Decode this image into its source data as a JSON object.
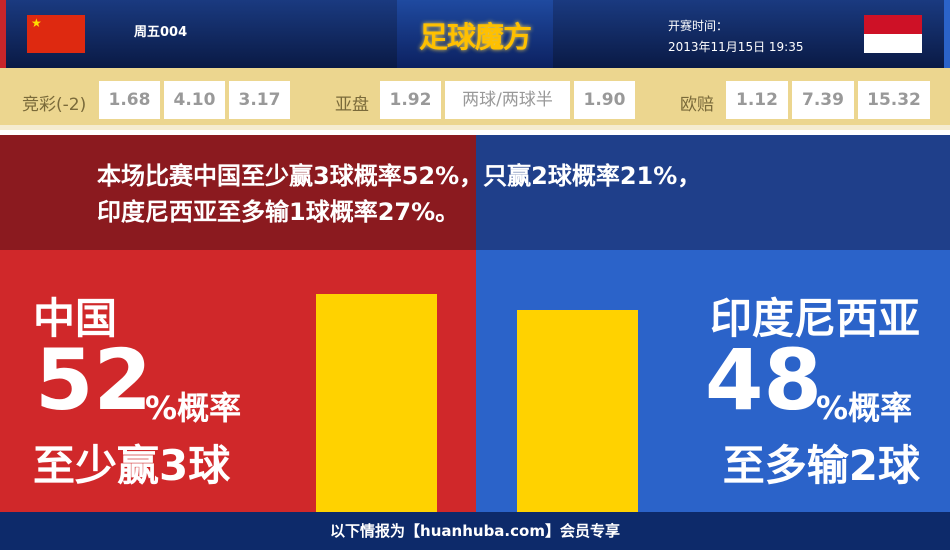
{
  "header": {
    "match_id": "周五004",
    "logo": "足球魔方",
    "time_label": "开赛时间：",
    "time": "2013年11月15日 19:35",
    "home_flag": "china-flag",
    "away_flag": "indonesia-flag"
  },
  "odds": {
    "jingcai_label": "竞彩(-2)",
    "jingcai": [
      "1.68",
      "4.10",
      "3.17"
    ],
    "yapan_label": "亚盘",
    "yapan": [
      "1.92",
      "两球/两球半",
      "1.90"
    ],
    "ouzhou_label": "欧赔",
    "ouzhou": [
      "1.12",
      "7.39",
      "15.32"
    ]
  },
  "summary": {
    "line1": "本场比赛中国至少赢3球概率52%，只赢2球概率21%，",
    "line2": "印度尼西亚至多输1球概率27%。"
  },
  "home": {
    "name": "中国",
    "percent": "52",
    "percent_suffix": "%概率",
    "desc": "至少赢3球",
    "bar_value": 52
  },
  "away": {
    "name": "印度尼西亚",
    "percent": "48",
    "percent_suffix": "%概率",
    "desc": "至多输2球",
    "bar_value": 48
  },
  "colors": {
    "home": "#d0282a",
    "away": "#2b63c9",
    "bar": "#ffd200"
  },
  "footer": {
    "text": "以下情报为【huanhuba.com】会员专享"
  }
}
